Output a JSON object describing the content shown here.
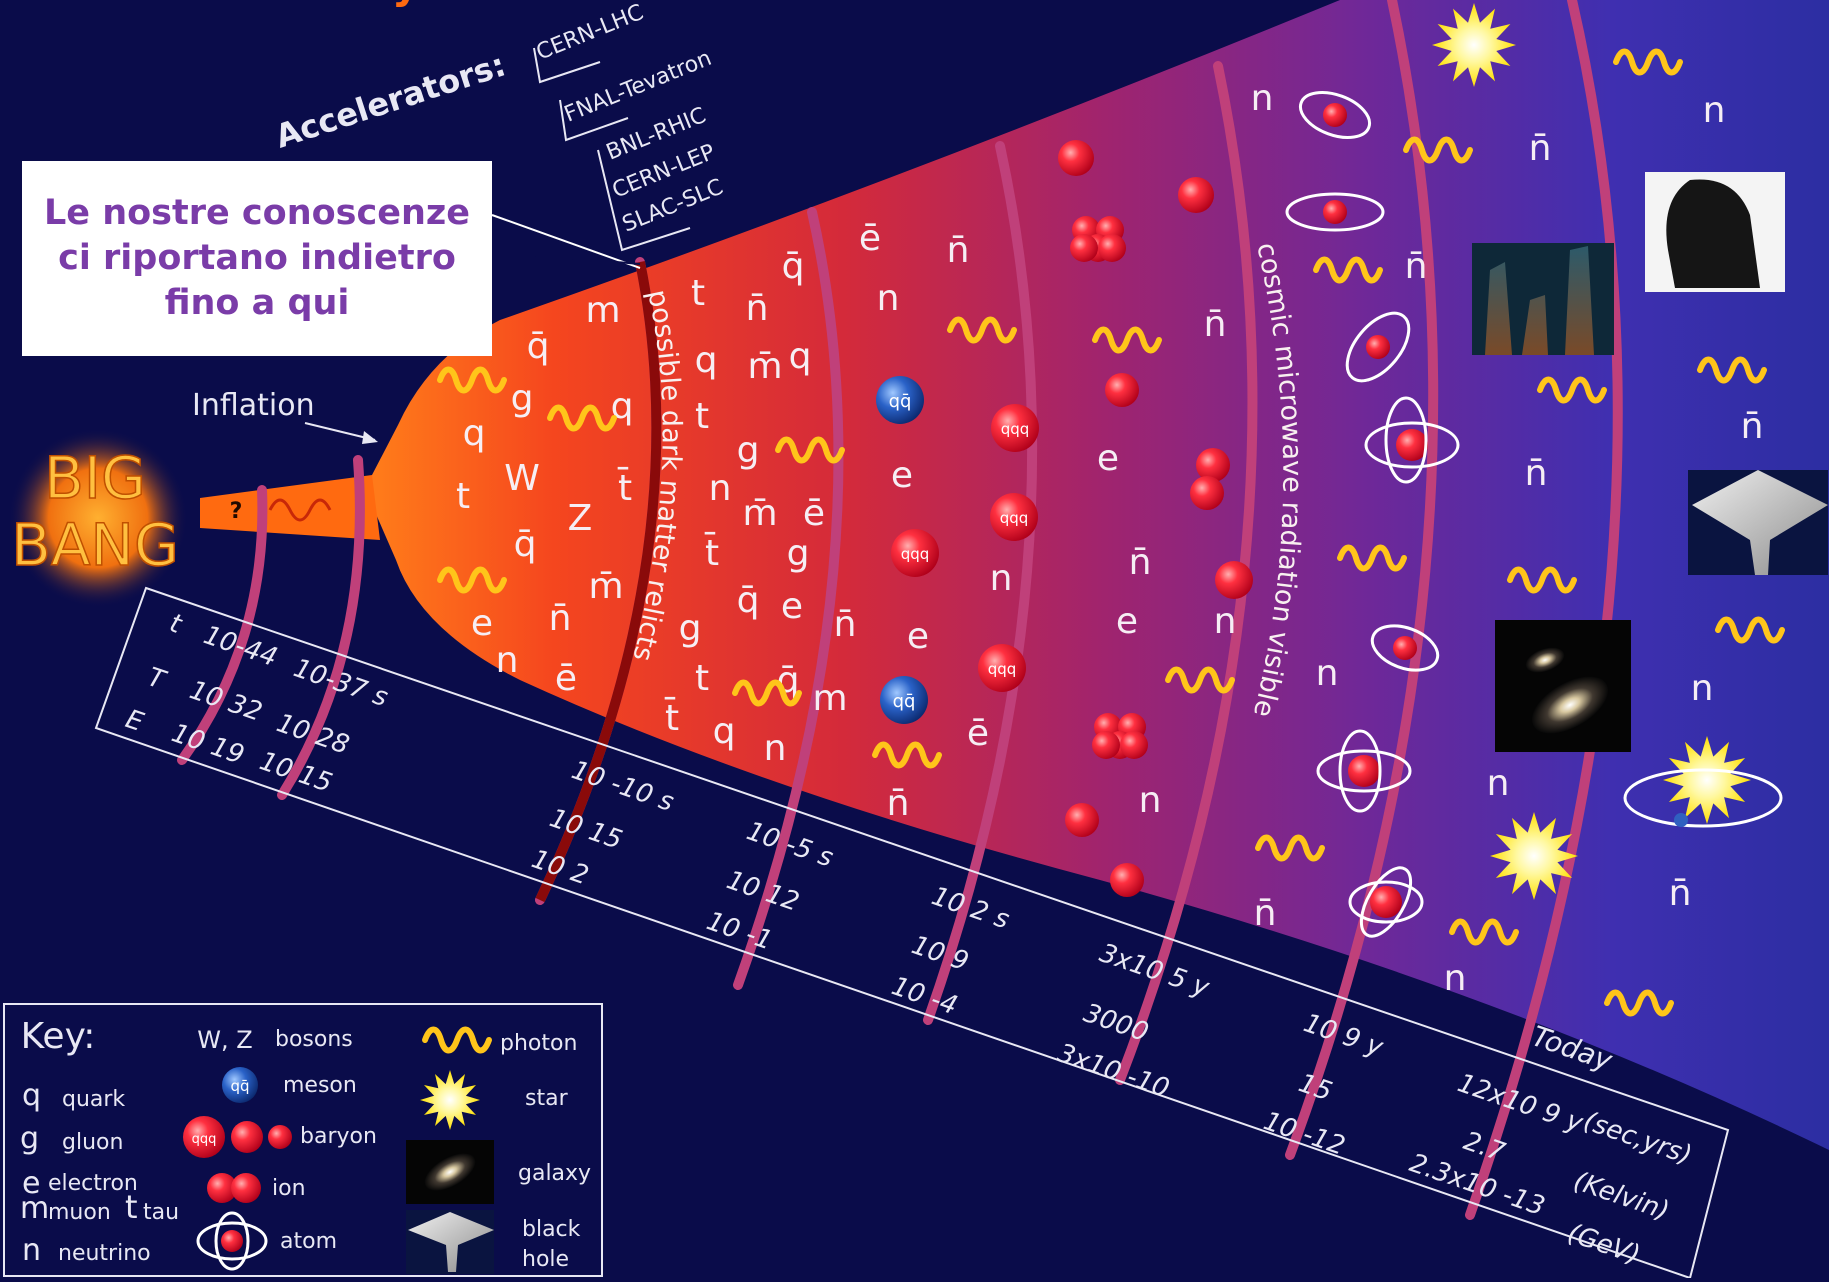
{
  "callout": {
    "text": "Le nostre conoscenze ci riportano indietro fino a qui"
  },
  "title_partial": "y",
  "accelerators": {
    "label": "Accelerators:",
    "items": [
      "CERN-LHC",
      "FNAL-Tevatron",
      "BNL-RHIC",
      "CERN-LEP",
      "SLAC-SLC"
    ]
  },
  "big_bang": {
    "line1": "BIG",
    "line2": "BANG",
    "question": "?"
  },
  "inflation_label": "Inflation",
  "band_labels": {
    "dark_matter": "possible dark matter relicts",
    "cmb": "cosmic microwave radiation visible"
  },
  "scale": {
    "row_labels": [
      "t",
      "T",
      "E"
    ],
    "units": [
      "(sec,yrs)",
      "(Kelvin)",
      "(GeV)"
    ],
    "columns": [
      {
        "t": "10-44",
        "T": "10 32",
        "E": "10 19"
      },
      {
        "t": "10-37 s",
        "T": "10 28",
        "E": "10 15"
      },
      {
        "t": "10 -10 s",
        "T": "10 15",
        "E": "10 2"
      },
      {
        "t": "10 -5 s",
        "T": "10 12",
        "E": "10 -1"
      },
      {
        "t": "10 2 s",
        "T": "10 9",
        "E": "10 -4"
      },
      {
        "t": "3x10 5 y",
        "T": "3000",
        "E": "3x10 -10"
      },
      {
        "t": "10 9 y",
        "T": "15",
        "E": "10 -12"
      },
      {
        "t": "Today",
        "T": "12x10 9 y",
        "E": "2.7"
      },
      {
        "t": "",
        "T": "",
        "E": "2.3x10 -13"
      }
    ]
  },
  "particles": {
    "quark": "q",
    "antiquark": "q̄",
    "gluon": "g",
    "electron": "e",
    "positron": "ē",
    "muon": "m",
    "antimuon": "m̄",
    "tau": "t",
    "antitau": "t̄",
    "neutrino": "n",
    "antineutrino": "n̄",
    "w": "W",
    "z": "Z",
    "meson": "qq̄",
    "baryon": "qqq"
  },
  "key": {
    "title": "Key:",
    "items": [
      {
        "symbol": "q",
        "label": "quark"
      },
      {
        "symbol": "g",
        "label": "gluon"
      },
      {
        "symbol": "e",
        "label": "electron"
      },
      {
        "symbol": "m",
        "label": "muon"
      },
      {
        "symbol": "t",
        "label": "tau"
      },
      {
        "symbol": "n",
        "label": "neutrino"
      },
      {
        "symbol": "W, Z",
        "label": "bosons"
      },
      {
        "symbol": "qq̄",
        "label": "meson"
      },
      {
        "symbol": "qqq",
        "label": "baryon"
      },
      {
        "symbol": "",
        "label": "ion"
      },
      {
        "symbol": "",
        "label": "atom"
      },
      {
        "symbol": "",
        "label": "photon"
      },
      {
        "symbol": "",
        "label": "star"
      },
      {
        "symbol": "",
        "label": "galaxy"
      },
      {
        "symbol": "",
        "label": "black hole"
      }
    ]
  },
  "colors": {
    "background": "#0a0c4a",
    "hot": "#ff5a1a",
    "callout_text": "#7a3ca8",
    "photon": "#ffc51a",
    "particle": "#f0203a"
  }
}
